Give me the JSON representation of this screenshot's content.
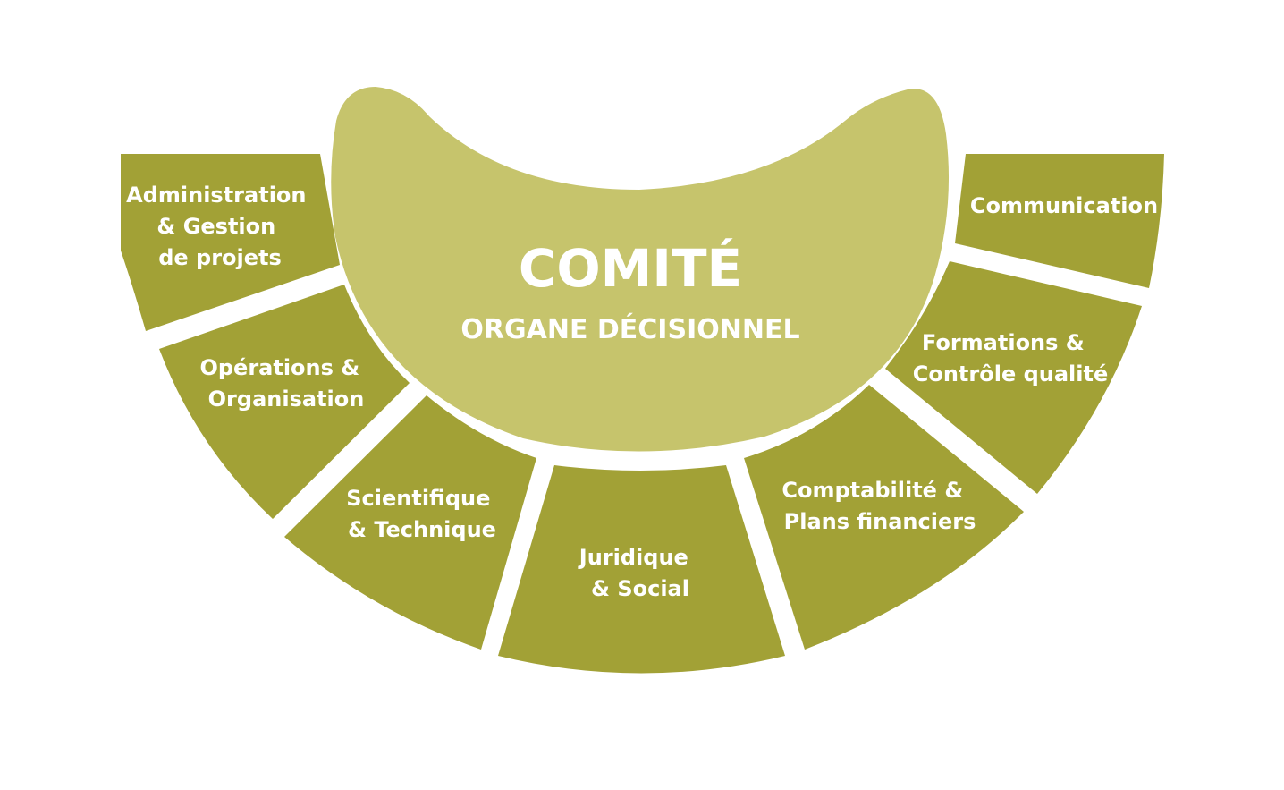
{
  "colors": {
    "segment": "#a2a136",
    "center": "#c6c46c",
    "text": "#ffffff",
    "background": "#ffffff"
  },
  "center": {
    "title": "COMITÉ",
    "subtitle": "ORGANE DÉCISIONNEL"
  },
  "segments": [
    {
      "id": "administration",
      "lines": [
        "Administration",
        "& Gestion",
        "de projets"
      ]
    },
    {
      "id": "operations",
      "lines": [
        "Opérations &",
        "Organisation"
      ]
    },
    {
      "id": "scientifique",
      "lines": [
        "Scientifique",
        "& Technique"
      ]
    },
    {
      "id": "juridique",
      "lines": [
        "Juridique",
        "& Social"
      ]
    },
    {
      "id": "comptabilite",
      "lines": [
        "Comptabilité &",
        "Plans financiers"
      ]
    },
    {
      "id": "formations",
      "lines": [
        "Formations &",
        "Contrôle qualité"
      ]
    },
    {
      "id": "communication",
      "lines": [
        "Communication"
      ]
    }
  ]
}
